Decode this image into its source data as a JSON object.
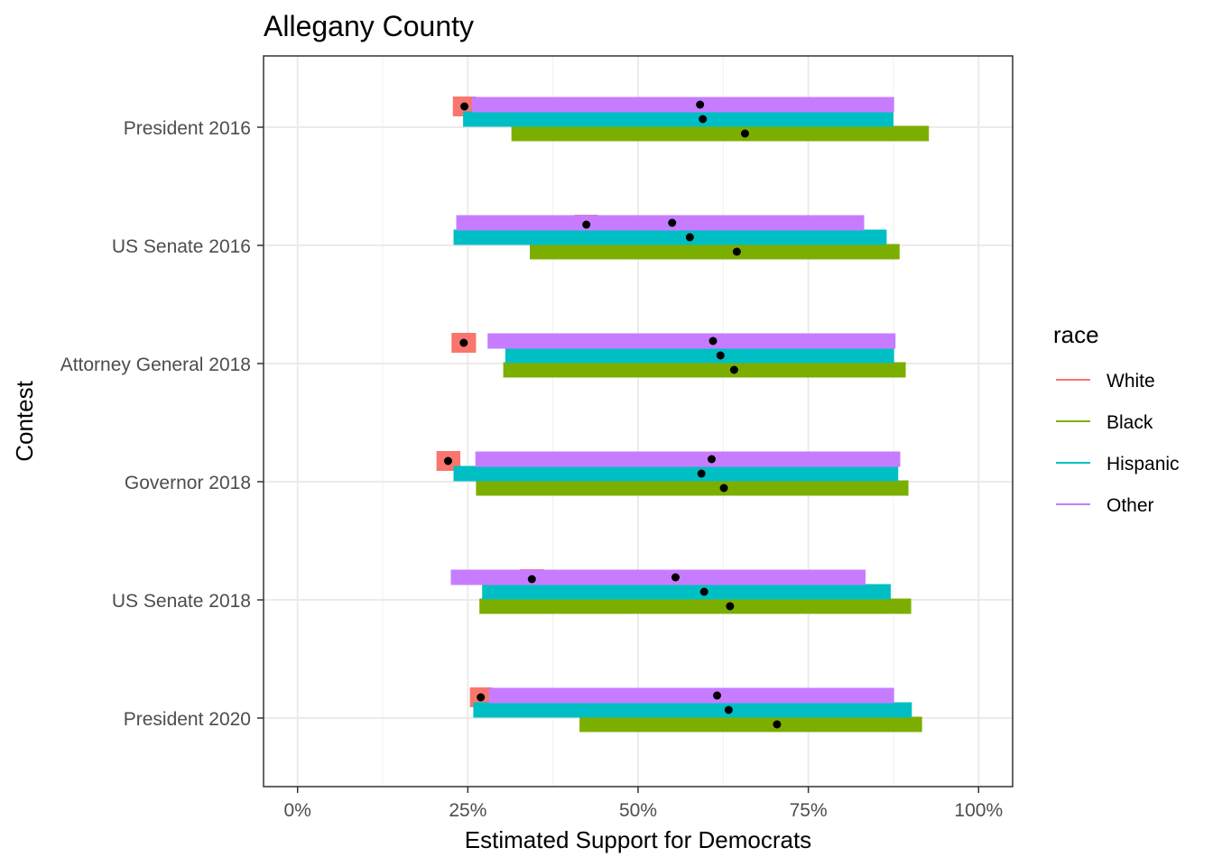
{
  "chart_data": {
    "type": "bar",
    "title": "Allegany County",
    "xlabel": "Estimated Support for Democrats",
    "ylabel": "Contest",
    "xlim": [
      -0.05,
      1.05
    ],
    "x_ticks": [
      0,
      0.25,
      0.5,
      0.75,
      1.0
    ],
    "x_tick_labels": [
      "0%",
      "25%",
      "50%",
      "75%",
      "100%"
    ],
    "grid": true,
    "legend_position": "right",
    "legend_title": "race",
    "categories": [
      "President 2016",
      "US Senate 2016",
      "Attorney General 2018",
      "Governor 2018",
      "US Senate 2018",
      "President 2020"
    ],
    "series": [
      {
        "name": "White",
        "color": "#F8766D",
        "lower": [
          0.228,
          0.407,
          0.226,
          0.204,
          0.327,
          0.253
        ],
        "estimate": [
          0.245,
          0.424,
          0.244,
          0.221,
          0.344,
          0.269
        ],
        "upper": [
          0.262,
          0.441,
          0.262,
          0.239,
          0.362,
          0.286
        ]
      },
      {
        "name": "Black",
        "color": "#7CAE00",
        "lower": [
          0.314,
          0.341,
          0.302,
          0.262,
          0.267,
          0.414
        ],
        "estimate": [
          0.657,
          0.645,
          0.641,
          0.626,
          0.635,
          0.704
        ],
        "upper": [
          0.927,
          0.884,
          0.893,
          0.897,
          0.901,
          0.917
        ]
      },
      {
        "name": "Hispanic",
        "color": "#00BFC4",
        "lower": [
          0.243,
          0.229,
          0.305,
          0.229,
          0.271,
          0.258
        ],
        "estimate": [
          0.595,
          0.576,
          0.621,
          0.593,
          0.597,
          0.633
        ],
        "upper": [
          0.875,
          0.865,
          0.876,
          0.882,
          0.871,
          0.902
        ]
      },
      {
        "name": "Other",
        "color": "#C77CFF",
        "lower": [
          0.256,
          0.233,
          0.279,
          0.261,
          0.225,
          0.281
        ],
        "estimate": [
          0.591,
          0.55,
          0.61,
          0.608,
          0.555,
          0.616
        ],
        "upper": [
          0.876,
          0.832,
          0.878,
          0.885,
          0.834,
          0.876
        ]
      }
    ]
  }
}
